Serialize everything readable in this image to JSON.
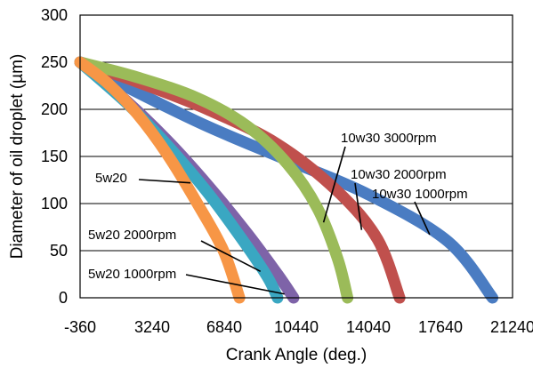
{
  "chart_data": {
    "type": "line",
    "title": "",
    "xlabel": "Crank Angle (deg.)",
    "ylabel": "Diameter of oil droplet   (µm)",
    "xlim": [
      -360,
      21240
    ],
    "ylim": [
      0,
      300
    ],
    "xticks": [
      -360,
      3240,
      6840,
      10440,
      14040,
      17640,
      21240
    ],
    "yticks": [
      0,
      50,
      100,
      150,
      200,
      250,
      300
    ],
    "grid": "horizontal",
    "legend": "none",
    "series": [
      {
        "name": "10w30 1000rpm",
        "color": "#4a7cc2",
        "points": [
          [
            -360,
            250
          ],
          [
            2500,
            218
          ],
          [
            6000,
            182
          ],
          [
            10000,
            146
          ],
          [
            14000,
            110
          ],
          [
            18000,
            60
          ],
          [
            20240,
            0
          ]
        ]
      },
      {
        "name": "10w30 2000rpm",
        "color": "#c0504d",
        "points": [
          [
            -360,
            250
          ],
          [
            2500,
            229
          ],
          [
            6000,
            200
          ],
          [
            9500,
            163
          ],
          [
            12500,
            113
          ],
          [
            14500,
            62
          ],
          [
            15600,
            0
          ]
        ]
      },
      {
        "name": "10w30 3000rpm",
        "color": "#9bbb59",
        "points": [
          [
            -360,
            250
          ],
          [
            2500,
            234
          ],
          [
            5500,
            212
          ],
          [
            8000,
            182
          ],
          [
            10000,
            142
          ],
          [
            11500,
            95
          ],
          [
            12500,
            42
          ],
          [
            13000,
            0
          ]
        ]
      },
      {
        "name": "",
        "color": "#7e63a8",
        "points": [
          [
            -360,
            250
          ],
          [
            2000,
            208
          ],
          [
            4000,
            167
          ],
          [
            6000,
            120
          ],
          [
            8000,
            68
          ],
          [
            9500,
            25
          ],
          [
            10300,
            0
          ]
        ]
      },
      {
        "name": "5w20 2000rpm",
        "color": "#3aa7c2",
        "points": [
          [
            -360,
            250
          ],
          [
            2000,
            206
          ],
          [
            4000,
            162
          ],
          [
            6000,
            112
          ],
          [
            7800,
            60
          ],
          [
            9000,
            22
          ],
          [
            9500,
            0
          ]
        ]
      },
      {
        "name": "5w20",
        "color": "#f79646",
        "points": [
          [
            -360,
            250
          ],
          [
            1000,
            228
          ],
          [
            2500,
            195
          ],
          [
            4000,
            152
          ],
          [
            5500,
            100
          ],
          [
            6800,
            50
          ],
          [
            7600,
            0
          ]
        ]
      }
    ],
    "annotations": [
      {
        "text": "10w30 3000rpm",
        "x": 11800,
        "y": 80
      },
      {
        "text": "10w30 2000rpm",
        "x": 13700,
        "y": 72
      },
      {
        "text": "10w30 1000rpm",
        "x": 17100,
        "y": 67
      },
      {
        "text": "5w20",
        "x": 5150,
        "y": 122
      },
      {
        "text": "5w20 2000rpm",
        "x": 8650,
        "y": 28
      },
      {
        "text": "5w20 1000rpm",
        "x": 9850,
        "y": 4
      }
    ]
  }
}
